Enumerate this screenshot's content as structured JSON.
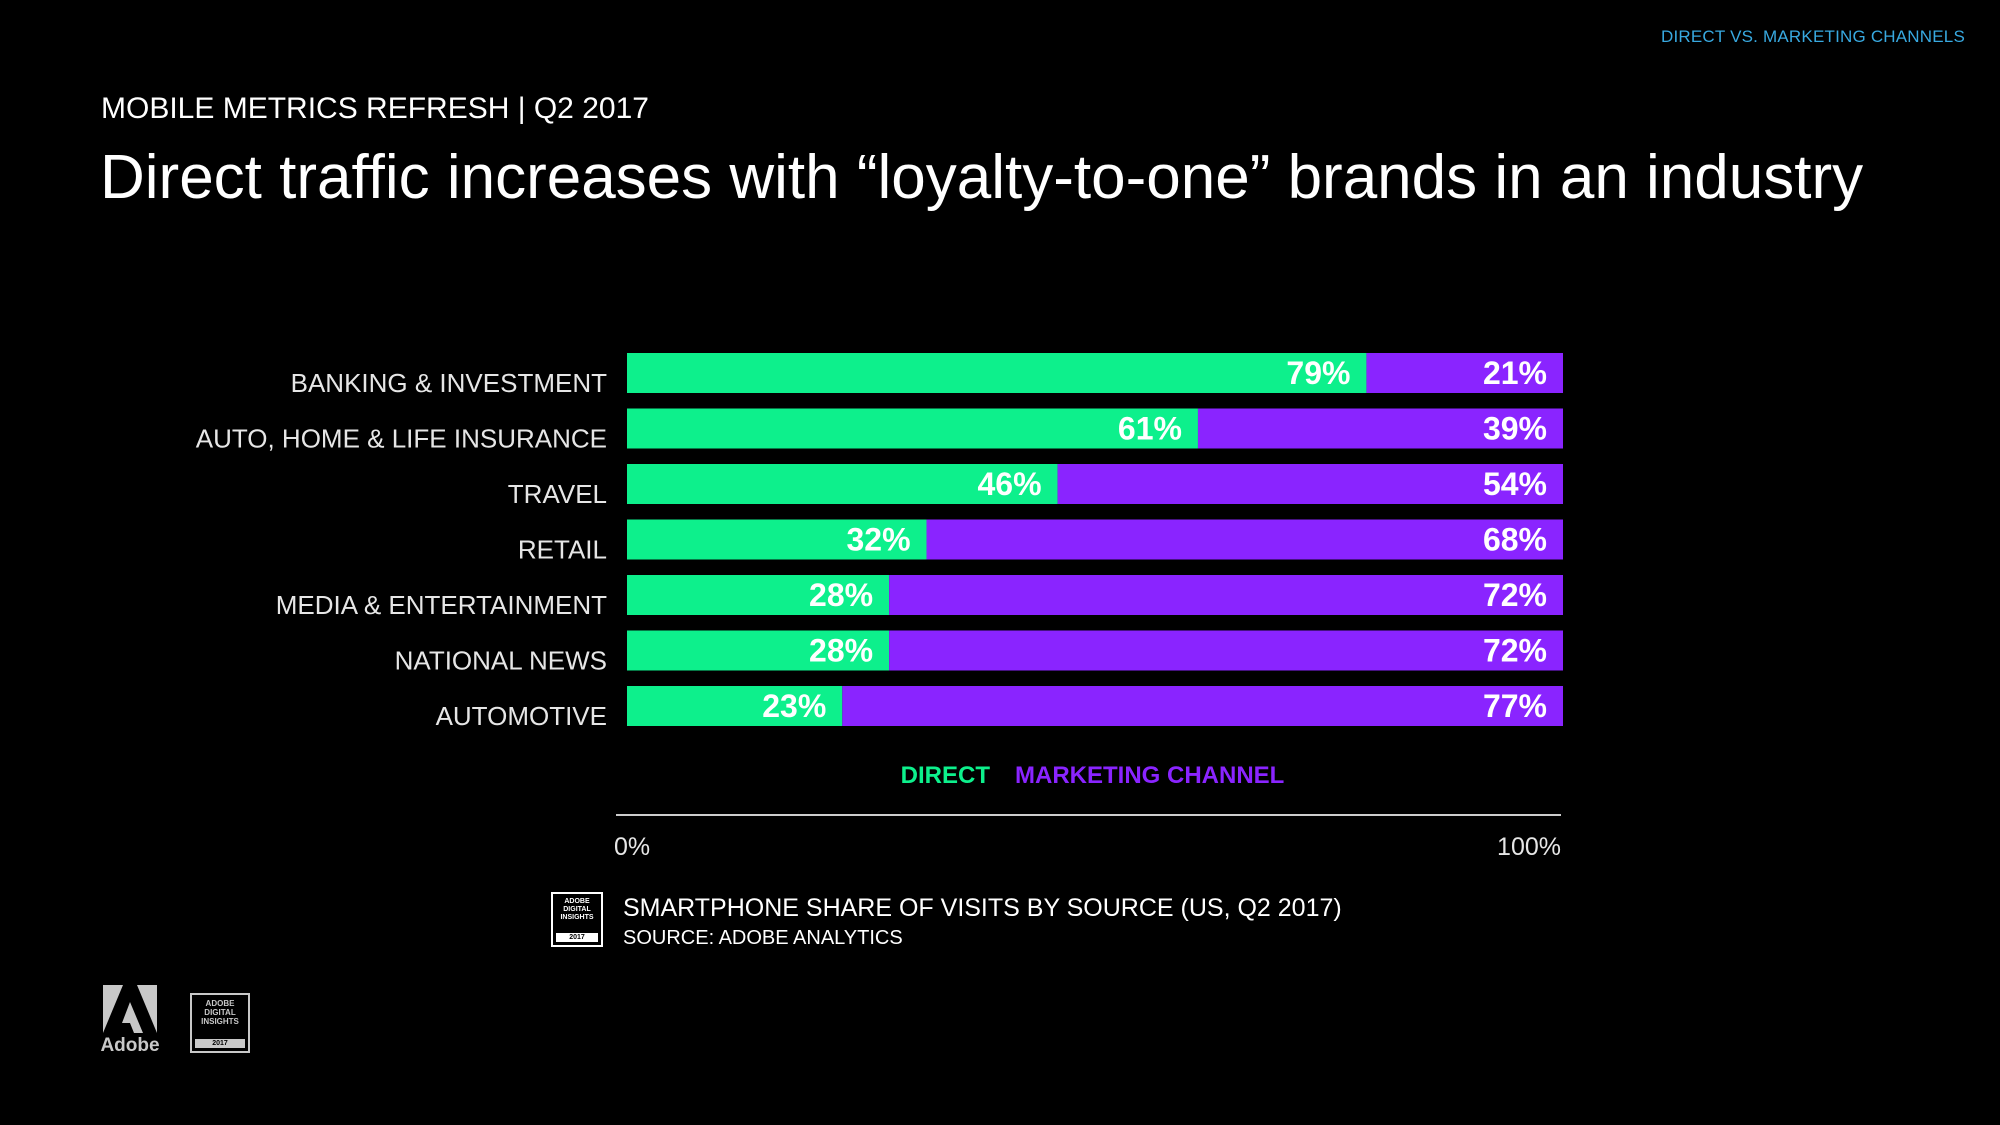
{
  "header": {
    "top_label": "DIRECT VS. MARKETING CHANNELS",
    "eyebrow": "MOBILE METRICS REFRESH | Q2 2017",
    "title": "Direct traffic increases with “loyalty-to-one” brands in an industry"
  },
  "colors": {
    "direct": "#0df08c",
    "marketing": "#8a24ff",
    "label": "#e6e6e6",
    "axis": "#cccccc",
    "accent_blue": "#38a9e0"
  },
  "chart_data": {
    "type": "bar",
    "orientation": "horizontal",
    "stacked": true,
    "normalized": true,
    "categories": [
      "BANKING & INVESTMENT",
      "AUTO, HOME & LIFE INSURANCE",
      "TRAVEL",
      "RETAIL",
      "MEDIA & ENTERTAINMENT",
      "NATIONAL NEWS",
      "AUTOMOTIVE"
    ],
    "series": [
      {
        "name": "DIRECT",
        "values": [
          79,
          61,
          46,
          32,
          28,
          28,
          23
        ]
      },
      {
        "name": "MARKETING CHANNEL",
        "values": [
          21,
          39,
          54,
          68,
          72,
          72,
          77
        ]
      }
    ],
    "value_suffix": "%",
    "xlim": [
      0,
      100
    ],
    "xtick_labels": [
      "0%",
      "100%"
    ],
    "legend": [
      "DIRECT",
      "MARKETING CHANNEL"
    ],
    "legend_position": "below bars, centered",
    "grid": false
  },
  "source": {
    "badge_lines": [
      "ADOBE",
      "DIGITAL",
      "INSIGHTS"
    ],
    "badge_year": "2017",
    "caption": "SMARTPHONE SHARE OF VISITS BY SOURCE (US, Q2 2017)",
    "source_line": "SOURCE: ADOBE ANALYTICS"
  },
  "footer": {
    "adobe_word": "Adobe",
    "badge_lines": [
      "ADOBE",
      "DIGITAL",
      "INSIGHTS"
    ],
    "badge_year": "2017"
  }
}
